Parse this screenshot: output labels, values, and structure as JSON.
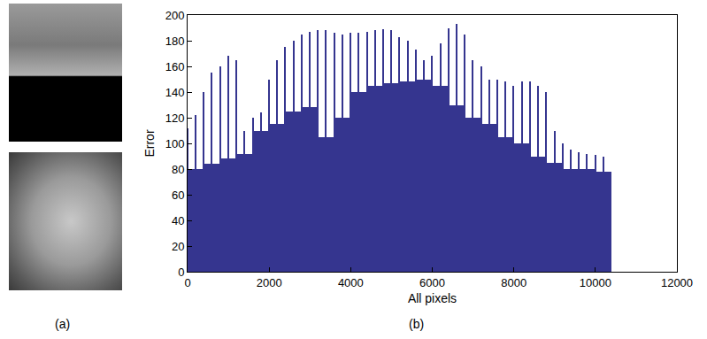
{
  "chart_data": {
    "type": "bar",
    "annotations": [
      "(a)",
      "(b)"
    ],
    "x_label": "All pixels",
    "y_label": "Error",
    "color": "#35358f",
    "series": [
      {
        "x": [
          0,
          200,
          400,
          600,
          800,
          1000,
          1200,
          1400,
          1600,
          1800,
          2000,
          2200,
          2400,
          2600,
          2800,
          3000,
          3200,
          3400,
          3600,
          3800,
          4000,
          4200,
          4400,
          4600,
          4800,
          5000,
          5200,
          5400,
          5600,
          5800,
          6000,
          6200,
          6400,
          6600,
          6800,
          7000,
          7200,
          7400,
          7600,
          7800,
          8000,
          8200,
          8400,
          8600,
          8800,
          9000,
          9200,
          9400,
          9600,
          9800,
          10000,
          10200
        ],
        "values": [
          112,
          122,
          140,
          155,
          160,
          168,
          165,
          110,
          120,
          124,
          150,
          165,
          175,
          180,
          185,
          187,
          188,
          188,
          186,
          185,
          186,
          186,
          187,
          188,
          189,
          188,
          183,
          180,
          173,
          165,
          168,
          178,
          190,
          193,
          185,
          165,
          160,
          150,
          150,
          148,
          145,
          148,
          148,
          145,
          140,
          110,
          100,
          95,
          93,
          92,
          91,
          90
        ]
      },
      {
        "x": [
          0,
          400,
          800,
          1200,
          1600,
          2000,
          2400,
          2800,
          3200,
          3600,
          4000,
          4400,
          4800,
          5200,
          5600,
          6000,
          6400,
          6800,
          7200,
          7600,
          8000,
          8400,
          8800,
          9200,
          9600,
          10000
        ],
        "values": [
          80,
          84,
          88,
          92,
          110,
          115,
          125,
          128,
          105,
          120,
          140,
          145,
          147,
          148,
          150,
          145,
          130,
          120,
          115,
          105,
          100,
          90,
          85,
          80,
          80,
          78
        ]
      }
    ],
    "xlim": [
      0,
      12000
    ],
    "xticks": [
      0,
      2000,
      4000,
      6000,
      8000,
      10000,
      12000
    ],
    "ylim": [
      0,
      200
    ],
    "yticks": [
      0,
      20,
      40,
      60,
      80,
      100,
      120,
      140,
      160,
      180,
      200
    ],
    "grid": false
  }
}
